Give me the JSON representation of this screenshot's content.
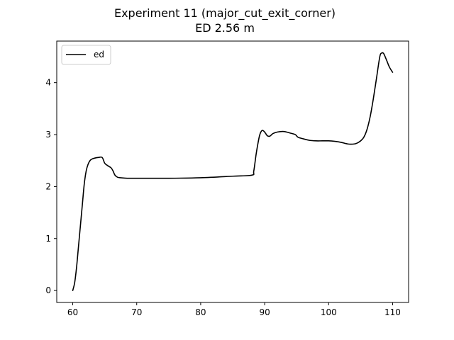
{
  "chart_data": {
    "type": "line",
    "title": "Experiment 11 (major_cut_exit_corner)",
    "subtitle": "ED 2.56 m",
    "xlabel": "",
    "ylabel": "",
    "xlim": [
      57.5,
      112.5
    ],
    "ylim": [
      -0.23,
      4.8
    ],
    "xticks": [
      60,
      70,
      80,
      90,
      100,
      110
    ],
    "yticks": [
      0,
      1,
      2,
      3,
      4
    ],
    "grid": false,
    "legend_position": "top-left",
    "series": [
      {
        "name": "ed",
        "color": "#000000",
        "x": [
          60.0,
          60.3,
          60.6,
          60.9,
          61.2,
          61.5,
          61.8,
          62.1,
          62.4,
          62.7,
          63.0,
          63.5,
          64.0,
          64.6,
          65.0,
          65.5,
          66.0,
          66.3,
          66.6,
          67.0,
          67.5,
          68.5,
          70,
          75,
          80,
          85,
          88.0,
          88.3,
          88.7,
          89.2,
          89.6,
          90.0,
          90.4,
          90.8,
          91.3,
          92.0,
          93.0,
          94.0,
          94.8,
          95.2,
          96.0,
          97.0,
          98.0,
          99.0,
          100.0,
          101.0,
          102.0,
          103.0,
          104.0,
          104.5,
          105.0,
          105.5,
          106.0,
          106.5,
          107.0,
          107.5,
          108.0,
          108.3,
          108.6,
          109.0,
          109.5,
          110.0
        ],
        "y": [
          0.0,
          0.15,
          0.45,
          0.85,
          1.25,
          1.65,
          2.05,
          2.3,
          2.43,
          2.5,
          2.53,
          2.55,
          2.56,
          2.56,
          2.45,
          2.4,
          2.36,
          2.3,
          2.22,
          2.18,
          2.17,
          2.16,
          2.16,
          2.16,
          2.17,
          2.2,
          2.22,
          2.3,
          2.65,
          2.98,
          3.08,
          3.05,
          2.98,
          2.97,
          3.02,
          3.05,
          3.06,
          3.03,
          3.0,
          2.95,
          2.92,
          2.89,
          2.88,
          2.88,
          2.88,
          2.87,
          2.85,
          2.82,
          2.82,
          2.84,
          2.88,
          2.95,
          3.1,
          3.35,
          3.7,
          4.1,
          4.5,
          4.57,
          4.56,
          4.45,
          4.3,
          4.2
        ]
      }
    ]
  }
}
